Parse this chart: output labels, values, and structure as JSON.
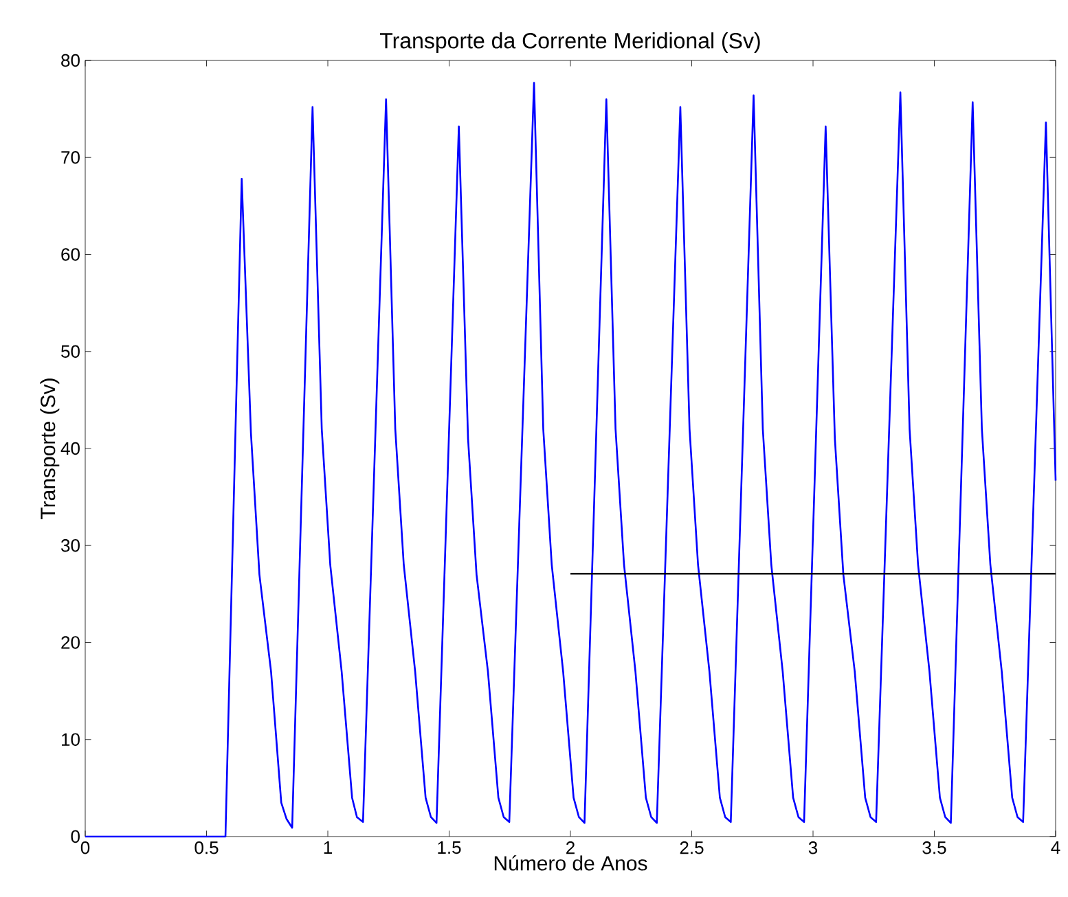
{
  "chart_data": {
    "type": "line",
    "title": "Transporte da Corrente Meridional (Sv)",
    "xlabel": "Número de Anos",
    "ylabel": "Transporte (Sv)",
    "xlim": [
      0,
      4
    ],
    "ylim": [
      0,
      80
    ],
    "xticks": [
      0,
      0.5,
      1,
      1.5,
      2,
      2.5,
      3,
      3.5,
      4
    ],
    "yticks": [
      0,
      10,
      20,
      30,
      40,
      50,
      60,
      70,
      80
    ],
    "series": [
      {
        "color": "#0000ff",
        "x": [
          0,
          0.578,
          0.645,
          0.683,
          0.718,
          0.766,
          0.808,
          0.83,
          0.853,
          0.937,
          0.975,
          1.01,
          1.057,
          1.1,
          1.12,
          1.145,
          1.24,
          1.278,
          1.313,
          1.36,
          1.403,
          1.425,
          1.448,
          1.54,
          1.578,
          1.613,
          1.66,
          1.703,
          1.725,
          1.748,
          1.85,
          1.888,
          1.923,
          1.97,
          2.013,
          2.035,
          2.058,
          2.148,
          2.186,
          2.221,
          2.268,
          2.311,
          2.333,
          2.356,
          2.453,
          2.491,
          2.526,
          2.573,
          2.616,
          2.638,
          2.661,
          2.755,
          2.793,
          2.828,
          2.875,
          2.918,
          2.94,
          2.963,
          3.052,
          3.09,
          3.125,
          3.172,
          3.215,
          3.237,
          3.26,
          3.36,
          3.398,
          3.433,
          3.48,
          3.523,
          3.545,
          3.568,
          3.658,
          3.696,
          3.731,
          3.778,
          3.821,
          3.843,
          3.866,
          3.96,
          4.0
        ],
        "values": [
          0,
          0,
          67.8,
          41.6,
          27,
          17,
          3.5,
          1.8,
          0.9,
          75.2,
          42,
          28,
          17,
          4,
          2,
          1.5,
          76.0,
          42,
          28,
          17,
          4,
          2,
          1.4,
          73.2,
          41,
          27,
          17,
          4,
          2,
          1.5,
          77.7,
          42,
          28,
          17,
          4,
          2,
          1.4,
          76.0,
          42,
          28,
          17,
          4,
          2,
          1.4,
          75.2,
          42,
          28,
          17,
          4,
          2,
          1.5,
          76.4,
          42,
          28,
          17,
          4,
          2,
          1.5,
          73.2,
          41,
          27,
          17,
          4,
          2,
          1.5,
          76.7,
          42,
          28,
          17,
          4,
          2,
          1.4,
          75.7,
          42,
          28,
          17,
          4,
          2,
          1.5,
          73.6,
          36.7
        ]
      },
      {
        "color": "#000000",
        "x": [
          2,
          4
        ],
        "values": [
          27.1,
          27.1
        ]
      }
    ]
  }
}
